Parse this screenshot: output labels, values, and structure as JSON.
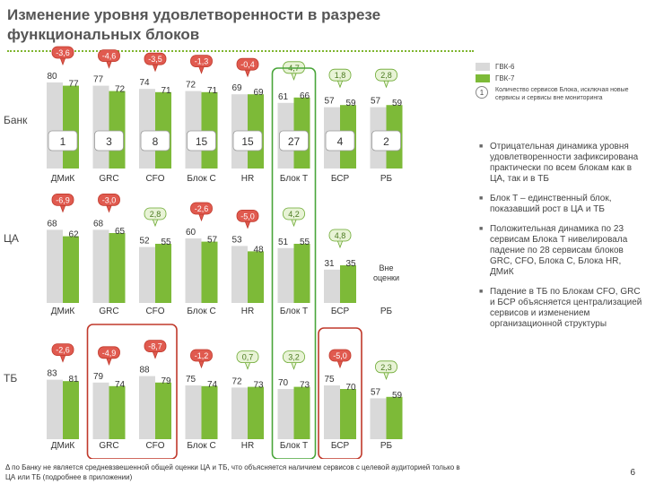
{
  "title": "Изменение уровня удовлетворенности в разрезе функциональных блоков",
  "legend": {
    "series_a": "ГВК-6",
    "series_b": "ГВК-7",
    "series_a_color": "#d9d9d9",
    "series_b_color": "#7dba38",
    "note_symbol": "1",
    "note_text": "Количество сервисов Блока, исключая новые сервисы и сервисы вне мониторинга"
  },
  "bullets": [
    "Отрицательная динамика уровня удовлетворенности зафиксирована практически по всем блокам как в ЦА, так и в ТБ",
    "Блок Т – единственный блок, показавший рост в ЦА и ТБ",
    "Положительная динамика по 23 сервисам Блока Т нивелировала падение по 28 сервисам блоков GRC, CFO, Блока С, Блока HR, ДМиК",
    "Падение в ТБ по Блокам CFO, GRC и БСР объясняется централизацией сервисов и изменением организационной структуры"
  ],
  "footnote": "Δ по Банку не является средневзвешенной общей оценки ЦА и ТБ, что объясняется наличием сервисов с целевой аудиторией только в ЦА или ТБ (подробнее в приложении)",
  "page_number": "6",
  "chart_data": {
    "type": "bar",
    "categories": [
      "ДМиК",
      "GRC",
      "CFO",
      "Блок С",
      "HR",
      "Блок Т",
      "БСР",
      "РБ"
    ],
    "series_names": [
      "ГВК-6",
      "ГВК-7"
    ],
    "ylim": [
      0,
      100
    ],
    "panels": [
      {
        "label": "Банк",
        "a": [
          80,
          77,
          74,
          72,
          69,
          61,
          57,
          57
        ],
        "b": [
          77,
          72,
          71,
          71,
          69,
          66,
          59,
          59
        ],
        "a_labels": [
          "80",
          "77",
          "74",
          "72",
          "69",
          "61",
          "57",
          "57"
        ],
        "b_labels": [
          "77",
          "72",
          "71",
          "71",
          "69",
          "66",
          "59",
          "59"
        ],
        "delta": [
          "-3,6",
          "-4,6",
          "-3,5",
          "-1,3",
          "-0,4",
          "4,7",
          "1,8",
          "2,8"
        ],
        "delta_sign": [
          "neg",
          "neg",
          "neg",
          "neg",
          "neg",
          "pos",
          "pos",
          "pos"
        ],
        "counts": [
          "1",
          "3",
          "8",
          "15",
          "15",
          "27",
          "4",
          "2"
        ]
      },
      {
        "label": "ЦА",
        "a": [
          68,
          68,
          52,
          60,
          53,
          51,
          31,
          null
        ],
        "b": [
          62,
          65,
          55,
          57,
          48,
          55,
          35,
          null
        ],
        "a_labels": [
          "68",
          "68",
          "52",
          "60",
          "53",
          "51",
          "31",
          ""
        ],
        "b_labels": [
          "62",
          "65",
          "55",
          "57",
          "48",
          "55",
          "35",
          ""
        ],
        "delta": [
          "-6,9",
          "-3,0",
          "2,8",
          "-2,6",
          "-5,0",
          "4,2",
          "4,8",
          ""
        ],
        "delta_sign": [
          "neg",
          "neg",
          "pos",
          "neg",
          "neg",
          "pos",
          "pos",
          ""
        ],
        "empty_note": "Вне оценки"
      },
      {
        "label": "ТБ",
        "a": [
          83,
          79,
          88,
          75,
          72,
          70,
          75,
          57
        ],
        "b": [
          81,
          74,
          79,
          74,
          73,
          73,
          70,
          59
        ],
        "a_labels": [
          "83",
          "79",
          "88",
          "75",
          "72",
          "70",
          "75",
          "57"
        ],
        "b_labels": [
          "81",
          "74",
          "79",
          "74",
          "73",
          "73",
          "70",
          "59"
        ],
        "delta": [
          "-2,6",
          "-4,9",
          "-8,7",
          "-1,2",
          "0,7",
          "3,2",
          "-5,0",
          "2,3"
        ],
        "delta_sign": [
          "neg",
          "neg",
          "neg",
          "neg",
          "pos",
          "pos",
          "neg",
          "pos"
        ]
      }
    ],
    "highlight": {
      "green": "Блок Т",
      "red_tb": [
        "GRC",
        "CFO",
        "БСР"
      ]
    }
  }
}
